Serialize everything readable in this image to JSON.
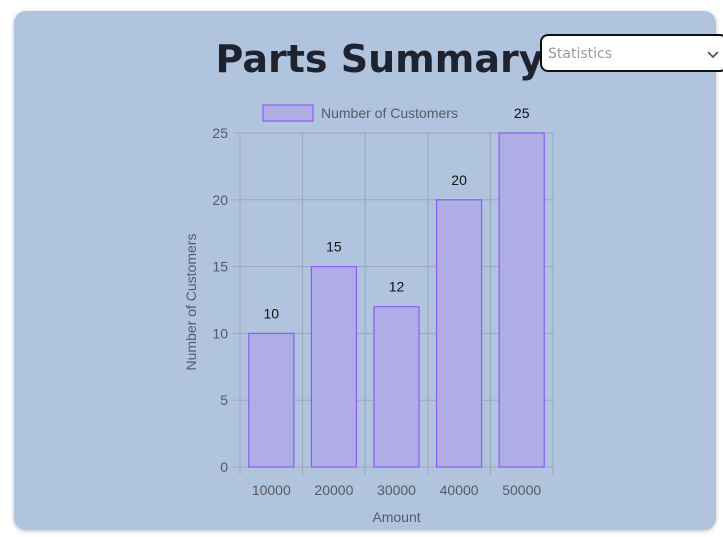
{
  "page": {
    "title": "Parts Summary"
  },
  "filter": {
    "selected": "Statistics"
  },
  "chart_data": {
    "type": "bar",
    "categories": [
      "10000",
      "20000",
      "30000",
      "40000",
      "50000"
    ],
    "series": [
      {
        "name": "Number of Customers",
        "values": [
          10,
          15,
          12,
          20,
          25
        ]
      }
    ],
    "xlabel": "Amount",
    "ylabel": "Number of Customers",
    "ylim": [
      0,
      25
    ],
    "yticks": [
      0,
      5,
      10,
      15,
      20,
      25
    ],
    "grid": true,
    "legend": "top",
    "data_labels": true,
    "colors": {
      "bar_fill": "#b0ade6",
      "bar_stroke": "#8b5cf6",
      "grid": "#9aa7bd",
      "tick_text": "#555b66",
      "data_label_text": "#111111"
    }
  }
}
